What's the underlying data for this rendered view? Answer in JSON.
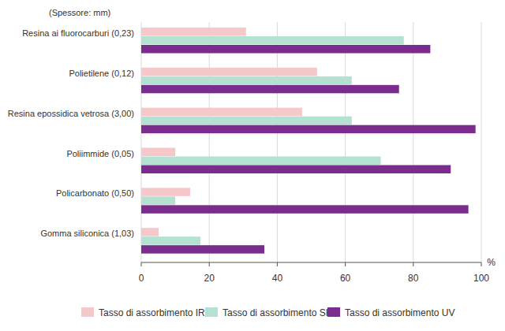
{
  "chart_data": {
    "type": "bar",
    "orientation": "horizontal",
    "annotation": "(Spessore: mm)",
    "x_label": "%",
    "categories": [
      "Resina ai fluorocarburi (0,23)",
      "Polietilene (0,12)",
      "Resina epossidica vetrosa (3,00)",
      "Poliimmide (0,05)",
      "Policarbonato (0,50)",
      "Gomma siliconica (1,03)"
    ],
    "series": [
      {
        "name": "Tasso di assorbimento IR",
        "color": "#f7c8c9",
        "values": [
          30.8,
          51.7,
          47.3,
          10,
          14.4,
          5.1
        ]
      },
      {
        "name": "Tasso di assorbimento SHG",
        "color": "#b5e1d3",
        "values": [
          77.2,
          61.9,
          61.9,
          70.4,
          10,
          17.4
        ]
      },
      {
        "name": "Tasso di assorbimento UV",
        "color": "#7a2d8c",
        "values": [
          85,
          75.8,
          98.3,
          91,
          96.2,
          36.2
        ]
      }
    ],
    "xlim": [
      0,
      100
    ],
    "xticks": [
      0,
      20,
      40,
      60,
      80,
      100
    ],
    "grid": true,
    "legend": "bottom"
  }
}
